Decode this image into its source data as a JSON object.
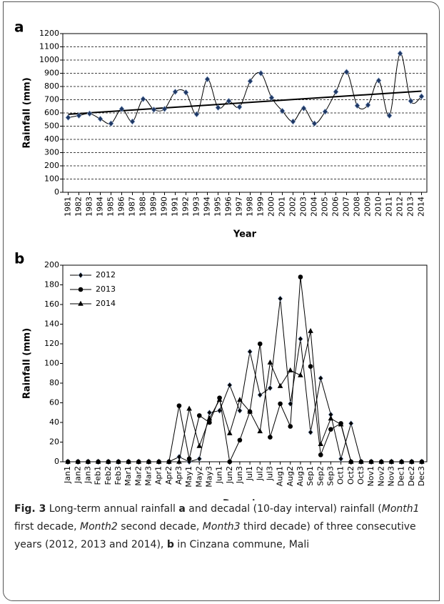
{
  "chart_data": [
    {
      "type": "line",
      "panel_label": "a",
      "x_label": "Year",
      "y_label": "Rainfall (mm)",
      "categories": [
        "1981",
        "1982",
        "1983",
        "1984",
        "1985",
        "1986",
        "1987",
        "1988",
        "1989",
        "1990",
        "1991",
        "1992",
        "1993",
        "1994",
        "1995",
        "1996",
        "1997",
        "1998",
        "1999",
        "2000",
        "2001",
        "2002",
        "2003",
        "2004",
        "2005",
        "2006",
        "2007",
        "2008",
        "2009",
        "2010",
        "2011",
        "2012",
        "2013",
        "2014"
      ],
      "series": [
        {
          "color": "#1f3864",
          "marker": "diamond",
          "smooth": true,
          "values": [
            565,
            580,
            595,
            555,
            520,
            630,
            535,
            705,
            625,
            630,
            760,
            755,
            590,
            855,
            640,
            690,
            645,
            840,
            900,
            715,
            615,
            535,
            635,
            520,
            610,
            760,
            910,
            655,
            660,
            845,
            580,
            1050,
            690,
            725
          ]
        }
      ],
      "trendline": [
        590,
        765
      ],
      "ylim": [
        0,
        1200
      ],
      "yticks": [
        0,
        100,
        200,
        300,
        400,
        500,
        600,
        700,
        800,
        900,
        1000,
        1100,
        1200
      ],
      "grid": true
    },
    {
      "type": "line",
      "panel_label": "b",
      "x_label": "Decades",
      "y_label": "Rainfall (mm)",
      "categories": [
        "Jan1",
        "Jan2",
        "Jan3",
        "Feb1",
        "Feb2",
        "Feb3",
        "Mar1",
        "Mar2",
        "Mar3",
        "Apr1",
        "Apr2",
        "Apr3",
        "May1",
        "May2",
        "May3",
        "Jun1",
        "Jun2",
        "Jun3",
        "Jul1",
        "Jul2",
        "Jul3",
        "Aug1",
        "Aug2",
        "Aug3",
        "Sep1",
        "Sep2",
        "Sep3",
        "Oct1",
        "Oct2",
        "Oct3",
        "Nov1",
        "Nov2",
        "Nov3",
        "Dec1",
        "Dec2",
        "Dec3"
      ],
      "series": [
        {
          "name": "2012",
          "color": "#000000",
          "marker": "diamond",
          "values": [
            0,
            0,
            0,
            0,
            0,
            0,
            0,
            0,
            0,
            0,
            0,
            5,
            0,
            3,
            50,
            52,
            78,
            52,
            112,
            68,
            75,
            166,
            59,
            125,
            30,
            85,
            48,
            3,
            39,
            0,
            0,
            0,
            0,
            0,
            0,
            0
          ]
        },
        {
          "name": "2013",
          "color": "#000000",
          "marker": "circle",
          "values": [
            0,
            0,
            0,
            0,
            0,
            0,
            0,
            0,
            0,
            0,
            0,
            57,
            3,
            47,
            40,
            65,
            0,
            22,
            51,
            120,
            25,
            59,
            36,
            188,
            97,
            7,
            33,
            39,
            0,
            0,
            0,
            0,
            0,
            0,
            0,
            0
          ]
        },
        {
          "name": "2014",
          "color": "#000000",
          "marker": "triangle",
          "values": [
            0,
            0,
            0,
            0,
            0,
            0,
            0,
            0,
            0,
            0,
            0,
            0,
            54,
            16,
            44,
            63,
            29,
            63,
            51,
            31,
            101,
            77,
            93,
            88,
            133,
            18,
            44,
            38,
            0,
            0,
            0,
            0,
            0,
            0,
            0,
            0
          ]
        }
      ],
      "ylim": [
        0,
        200
      ],
      "yticks": [
        0,
        20,
        40,
        60,
        80,
        100,
        120,
        140,
        160,
        180,
        200
      ],
      "grid": false,
      "legend": "top-left"
    }
  ],
  "caption": {
    "parts": [
      "Fig. 3",
      "  Long-term annual rainfall ",
      "a",
      " and decadal (10-day interval) rainfall (",
      "Month1",
      " first decade, ",
      "Month2",
      " second decade, ",
      "Month3",
      " third decade) of three consecutive years (2012, 2013 and 2014), ",
      "b",
      " in Cinzana commune, Mali"
    ]
  }
}
